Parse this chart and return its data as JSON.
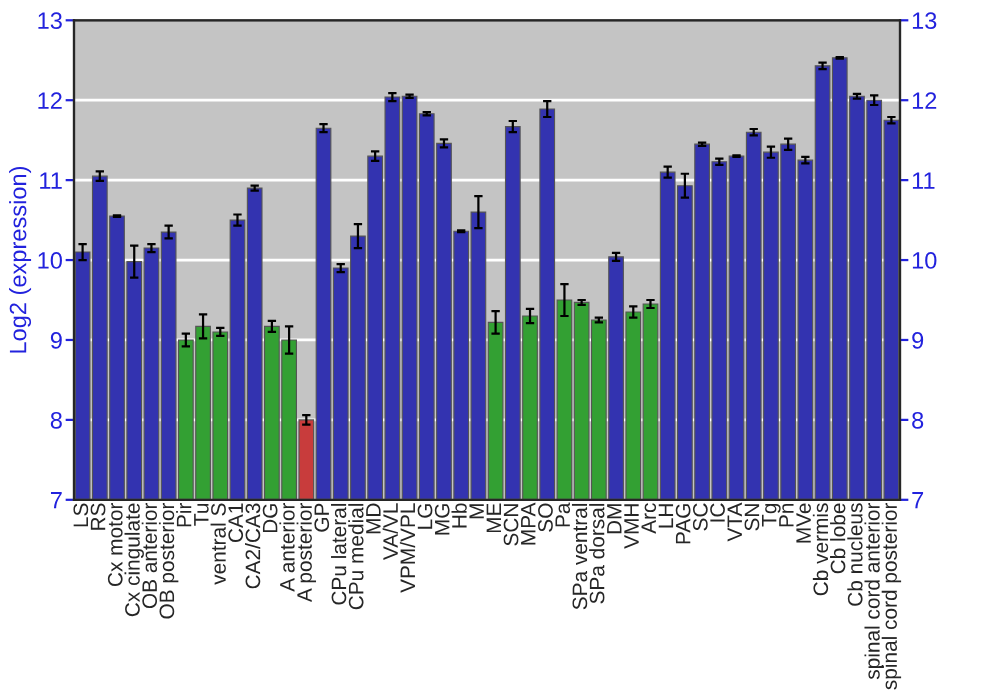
{
  "chart_data": {
    "type": "bar",
    "ylabel": "Log2 (expression)",
    "categories": [
      "LS",
      "RS",
      "Cx motor",
      "Cx cingulate",
      "OB anterior",
      "OB posterior",
      "Pir",
      "Tu",
      "ventral S",
      "CA1",
      "CA2/CA3",
      "DG",
      "A anterior",
      "A posterior",
      "GP",
      "CPu lateral",
      "CPu medial",
      "MD",
      "VA/VL",
      "VPM/VPL",
      "LG",
      "MG",
      "Hb",
      "M",
      "ME",
      "SCN",
      "MPA",
      "SO",
      "Pa",
      "SPa ventral",
      "SPa dorsal",
      "DM",
      "VMH",
      "Arc",
      "LH",
      "PAG",
      "SC",
      "IC",
      "VTA",
      "SN",
      "Tg",
      "Pn",
      "MVe",
      "Cb vermis",
      "Cb lobe",
      "Cb nucleus",
      "spinal cord anterior",
      "spinal cord posterior"
    ],
    "values": [
      10.1,
      11.05,
      10.55,
      9.98,
      10.15,
      10.35,
      9.0,
      9.17,
      9.1,
      10.5,
      10.9,
      9.17,
      9.0,
      8.0,
      11.65,
      9.9,
      10.3,
      11.3,
      12.04,
      12.05,
      11.83,
      11.46,
      10.36,
      10.6,
      9.22,
      11.67,
      9.3,
      11.89,
      9.5,
      9.47,
      9.25,
      10.04,
      9.35,
      9.45,
      11.1,
      10.93,
      11.45,
      11.23,
      11.3,
      11.6,
      11.35,
      11.45,
      11.25,
      12.43,
      12.53,
      12.05,
      12.0,
      11.75
    ],
    "errors": [
      0.1,
      0.06,
      0.01,
      0.2,
      0.05,
      0.08,
      0.08,
      0.15,
      0.05,
      0.07,
      0.03,
      0.07,
      0.17,
      0.06,
      0.05,
      0.05,
      0.15,
      0.06,
      0.05,
      0.02,
      0.02,
      0.05,
      0.01,
      0.2,
      0.14,
      0.07,
      0.09,
      0.1,
      0.2,
      0.03,
      0.03,
      0.05,
      0.07,
      0.05,
      0.07,
      0.15,
      0.02,
      0.04,
      0.01,
      0.04,
      0.07,
      0.07,
      0.04,
      0.04,
      0.01,
      0.03,
      0.06,
      0.04
    ],
    "colors": [
      "#3333b0",
      "#3333b0",
      "#3333b0",
      "#3333b0",
      "#3333b0",
      "#3333b0",
      "#33a033",
      "#33a033",
      "#33a033",
      "#3333b0",
      "#3333b0",
      "#33a033",
      "#33a033",
      "#c83c3c",
      "#3333b0",
      "#3333b0",
      "#3333b0",
      "#3333b0",
      "#3333b0",
      "#3333b0",
      "#3333b0",
      "#3333b0",
      "#3333b0",
      "#3333b0",
      "#33a033",
      "#3333b0",
      "#33a033",
      "#3333b0",
      "#33a033",
      "#33a033",
      "#33a033",
      "#3333b0",
      "#33a033",
      "#33a033",
      "#3333b0",
      "#3333b0",
      "#3333b0",
      "#3333b0",
      "#3333b0",
      "#3333b0",
      "#3333b0",
      "#3333b0",
      "#3333b0",
      "#3333b0",
      "#3333b0",
      "#3333b0",
      "#3333b0",
      "#3333b0"
    ],
    "ylim": [
      7,
      13
    ],
    "yticks": [
      7,
      8,
      9,
      10,
      11,
      12,
      13
    ],
    "y2lim": [
      7,
      13
    ],
    "y2ticks": [
      7,
      8,
      9,
      10,
      11,
      12,
      13
    ],
    "grid": "y",
    "legend": false
  }
}
